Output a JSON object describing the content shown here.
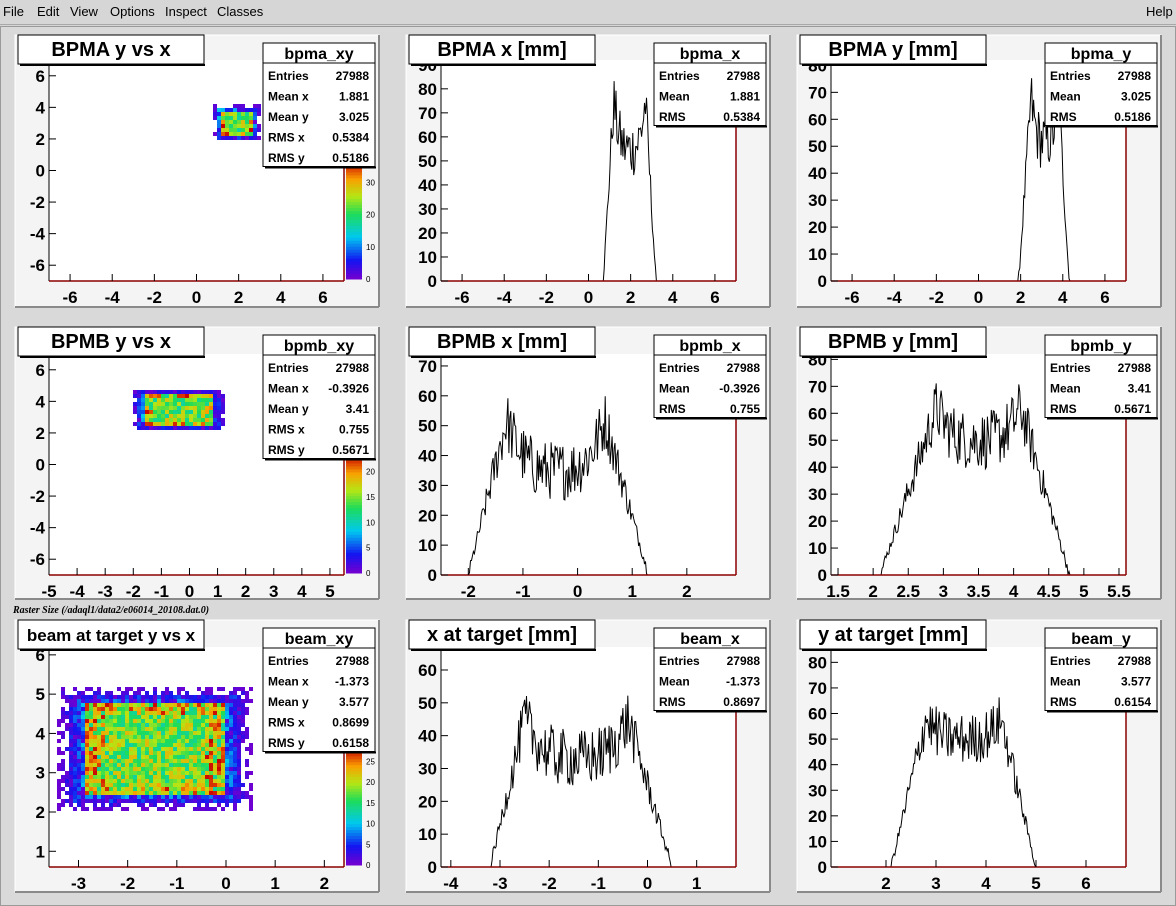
{
  "menu": {
    "file": "File",
    "edit": "Edit",
    "view": "View",
    "options": "Options",
    "inspect": "Inspect",
    "classes": "Classes",
    "help": "Help"
  },
  "raster_label": "Raster Size (/adaql1/data2/e06014_20108.dat.0)",
  "colors": {
    "canvas_bg": "#d9d9d9",
    "pad_bg": "#ffffff",
    "frame_right": "#8b0000",
    "hist_line": "#000000"
  },
  "stat_labels": {
    "entries": "Entries",
    "mean_x": "Mean x",
    "mean_y": "Mean y",
    "rms_x": "RMS x",
    "rms_y": "RMS y",
    "mean": "Mean",
    "rms": "RMS"
  },
  "pads": [
    {
      "id": "bpma_xy",
      "type": "heatmap",
      "title": "BPMA y vs x",
      "stats": {
        "name": "bpma_xy",
        "entries": "27988",
        "mean_x": "1.881",
        "mean_y": "3.025",
        "rms_x": "0.5384",
        "rms_y": "0.5186"
      },
      "xlim": [
        -7,
        7
      ],
      "ylim": [
        -7,
        7
      ],
      "xticks": [
        -6,
        -4,
        -2,
        0,
        2,
        4,
        6
      ],
      "yticks": [
        -6,
        -4,
        -2,
        0,
        2,
        4,
        6
      ],
      "xtick_labels": [
        "-6",
        "-4",
        "-2",
        "0",
        "2",
        "4",
        "6"
      ],
      "ytick_labels": [
        "-6",
        "-4",
        "-2",
        "0",
        "2",
        "4",
        "6"
      ],
      "colorbar_labels": [
        "0",
        "10",
        "20",
        "30"
      ],
      "blob": {
        "xmin": 0.9,
        "xmax": 2.9,
        "ymin": 2.0,
        "ymax": 4.0,
        "peak": 40
      }
    },
    {
      "id": "bpma_x",
      "type": "histogram",
      "title": "BPMA x [mm]",
      "stats": {
        "name": "bpma_x",
        "entries": "27988",
        "mean": "1.881",
        "rms": "0.5384"
      },
      "xlim": [
        -7,
        7
      ],
      "ylim": [
        0,
        92
      ],
      "xticks": [
        -6,
        -4,
        -2,
        0,
        2,
        4,
        6
      ],
      "yticks": [
        0,
        10,
        20,
        30,
        40,
        50,
        60,
        70,
        80,
        90
      ],
      "xtick_labels": [
        "-6",
        "-4",
        "-2",
        "0",
        "2",
        "4",
        "6"
      ],
      "ytick_labels": [
        "0",
        "10",
        "20",
        "30",
        "40",
        "50",
        "60",
        "70",
        "80",
        "90"
      ],
      "shape": {
        "start": 0.7,
        "rise_end": 1.2,
        "fall_start": 2.7,
        "end": 3.2,
        "edge_peak": 75,
        "middle": 55,
        "noise": 12
      }
    },
    {
      "id": "bpma_y",
      "type": "histogram",
      "title": "BPMA y [mm]",
      "stats": {
        "name": "bpma_y",
        "entries": "27988",
        "mean": "3.025",
        "rms": "0.5186"
      },
      "xlim": [
        -7,
        7
      ],
      "ylim": [
        0,
        82
      ],
      "xticks": [
        -6,
        -4,
        -2,
        0,
        2,
        4,
        6
      ],
      "yticks": [
        0,
        10,
        20,
        30,
        40,
        50,
        60,
        70,
        80
      ],
      "xtick_labels": [
        "-6",
        "-4",
        "-2",
        "0",
        "2",
        "4",
        "6"
      ],
      "ytick_labels": [
        "0",
        "10",
        "20",
        "30",
        "40",
        "50",
        "60",
        "70",
        "80"
      ],
      "shape": {
        "start": 1.9,
        "rise_end": 2.5,
        "fall_start": 3.8,
        "end": 4.3,
        "edge_peak": 68,
        "middle": 52,
        "noise": 11
      }
    },
    {
      "id": "bpmb_xy",
      "type": "heatmap",
      "title": "BPMB y vs x",
      "stats": {
        "name": "bpmb_xy",
        "entries": "27988",
        "mean_x": "-0.3926",
        "mean_y": "3.41",
        "rms_x": "0.755",
        "rms_y": "0.5671"
      },
      "xlim": [
        -5,
        5.5
      ],
      "ylim": [
        -7,
        7
      ],
      "xticks": [
        -5,
        -4,
        -3,
        -2,
        -1,
        0,
        1,
        2,
        3,
        4,
        5
      ],
      "yticks": [
        -6,
        -4,
        -2,
        0,
        2,
        4,
        6
      ],
      "xtick_labels": [
        "-5",
        "-4",
        "-3",
        "-2",
        "-1",
        "0",
        "1",
        "2",
        "3",
        "4",
        "5"
      ],
      "ytick_labels": [
        "-6",
        "-4",
        "-2",
        "0",
        "2",
        "4",
        "6"
      ],
      "colorbar_labels": [
        "0",
        "5",
        "10",
        "15",
        "20"
      ],
      "blob": {
        "xmin": -1.9,
        "xmax": 1.1,
        "ymin": 2.3,
        "ymax": 4.6,
        "peak": 25
      }
    },
    {
      "id": "bpmb_x",
      "type": "histogram",
      "title": "BPMB x [mm]",
      "stats": {
        "name": "bpmb_x",
        "entries": "27988",
        "mean": "-0.3926",
        "rms": "0.755"
      },
      "xlim": [
        -2.5,
        2.9
      ],
      "ylim": [
        0,
        74
      ],
      "xticks": [
        -2,
        -1,
        0,
        1,
        2
      ],
      "yticks": [
        0,
        10,
        20,
        30,
        40,
        50,
        60,
        70
      ],
      "xtick_labels": [
        "-2",
        "-1",
        "0",
        "1",
        "2"
      ],
      "ytick_labels": [
        "0",
        "10",
        "20",
        "30",
        "40",
        "50",
        "60",
        "70"
      ],
      "shape": {
        "start": -2.0,
        "rise_end": -1.3,
        "fall_start": 0.5,
        "end": 1.3,
        "edge_peak": 52,
        "middle": 35,
        "noise": 10
      }
    },
    {
      "id": "bpmb_y",
      "type": "histogram",
      "title": "BPMB y [mm]",
      "stats": {
        "name": "bpmb_y",
        "entries": "27988",
        "mean": "3.41",
        "rms": "0.5671"
      },
      "xlim": [
        1.4,
        5.6
      ],
      "ylim": [
        0,
        82
      ],
      "xticks": [
        1.5,
        2,
        2.5,
        3,
        3.5,
        4,
        4.5,
        5,
        5.5
      ],
      "yticks": [
        0,
        10,
        20,
        30,
        40,
        50,
        60,
        70,
        80
      ],
      "xtick_labels": [
        "1.5",
        "2",
        "2.5",
        "3",
        "3.5",
        "4",
        "4.5",
        "5",
        "5.5"
      ],
      "ytick_labels": [
        "0",
        "10",
        "20",
        "30",
        "40",
        "50",
        "60",
        "70",
        "80"
      ],
      "shape": {
        "start": 2.1,
        "rise_end": 2.9,
        "fall_start": 4.1,
        "end": 4.8,
        "edge_peak": 62,
        "middle": 50,
        "noise": 11
      }
    },
    {
      "id": "beam_xy",
      "type": "heatmap",
      "title": "beam at target y vs x",
      "stats": {
        "name": "beam_xy",
        "entries": "27988",
        "mean_x": "-1.373",
        "mean_y": "3.577",
        "rms_x": "0.8699",
        "rms_y": "0.6158"
      },
      "xlim": [
        -3.6,
        2.4
      ],
      "ylim": [
        0.6,
        6.2
      ],
      "xticks": [
        -3,
        -2,
        -1,
        0,
        1,
        2
      ],
      "yticks": [
        1,
        2,
        3,
        4,
        5,
        6
      ],
      "xtick_labels": [
        "-3",
        "-2",
        "-1",
        "0",
        "1",
        "2"
      ],
      "ytick_labels": [
        "1",
        "2",
        "3",
        "4",
        "5",
        "6"
      ],
      "colorbar_labels": [
        "0",
        "5",
        "10",
        "15",
        "20",
        "25"
      ],
      "blob": {
        "xmin": -3.2,
        "xmax": 0.3,
        "ymin": 2.2,
        "ymax": 5.0,
        "peak": 28
      }
    },
    {
      "id": "beam_x",
      "type": "histogram",
      "title": "x at target [mm]",
      "stats": {
        "name": "beam_x",
        "entries": "27988",
        "mean": "-1.373",
        "rms": "0.8697"
      },
      "xlim": [
        -4.2,
        1.8
      ],
      "ylim": [
        0,
        67
      ],
      "xticks": [
        -4,
        -3,
        -2,
        -1,
        0,
        1
      ],
      "yticks": [
        0,
        10,
        20,
        30,
        40,
        50,
        60
      ],
      "xtick_labels": [
        "-4",
        "-3",
        "-2",
        "-1",
        "0",
        "1"
      ],
      "ytick_labels": [
        "0",
        "10",
        "20",
        "30",
        "40",
        "50",
        "60"
      ],
      "shape": {
        "start": -3.2,
        "rise_end": -2.5,
        "fall_start": -0.4,
        "end": 0.5,
        "edge_peak": 45,
        "middle": 33,
        "noise": 9
      }
    },
    {
      "id": "beam_y",
      "type": "histogram",
      "title": "y at target [mm]",
      "stats": {
        "name": "beam_y",
        "entries": "27988",
        "mean": "3.577",
        "rms": "0.6154"
      },
      "xlim": [
        0.9,
        6.8
      ],
      "ylim": [
        0,
        86
      ],
      "xticks": [
        2,
        3,
        4,
        5,
        6
      ],
      "yticks": [
        0,
        10,
        20,
        30,
        40,
        50,
        60,
        70,
        80
      ],
      "xtick_labels": [
        "2",
        "3",
        "4",
        "5",
        "6"
      ],
      "ytick_labels": [
        "0",
        "10",
        "20",
        "30",
        "40",
        "50",
        "60",
        "70",
        "80"
      ],
      "shape": {
        "start": 2.1,
        "rise_end": 2.8,
        "fall_start": 4.3,
        "end": 5.0,
        "edge_peak": 58,
        "middle": 50,
        "noise": 10
      }
    }
  ]
}
